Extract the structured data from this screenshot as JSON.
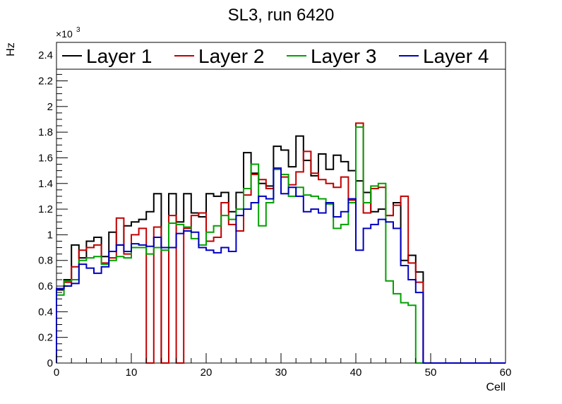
{
  "chart_data": {
    "type": "step",
    "title": "SL3, run 6420",
    "xlabel": "Cell",
    "ylabel": "Hz",
    "y_multiplier": "×10",
    "y_multiplier_exp": "3",
    "xlim": [
      0,
      60
    ],
    "ylim": [
      0,
      2.5
    ],
    "x_ticks": [
      "0",
      "10",
      "20",
      "30",
      "40",
      "50",
      "60"
    ],
    "y_ticks": [
      "0",
      "0.2",
      "0.4",
      "0.6",
      "0.8",
      "1",
      "1.2",
      "1.4",
      "1.6",
      "1.8",
      "2",
      "2.2",
      "2.4"
    ],
    "legend_position": "top",
    "bin_edges": [
      0,
      60
    ],
    "series": [
      {
        "name": "Layer 1",
        "color": "#000000",
        "values": [
          0.57,
          0.65,
          0.92,
          0.82,
          0.95,
          0.98,
          0.83,
          1.02,
          0.92,
          1.07,
          1.1,
          1.12,
          1.18,
          1.32,
          0.0,
          1.32,
          1.1,
          1.32,
          1.17,
          1.14,
          1.32,
          1.3,
          1.33,
          1.18,
          1.33,
          1.64,
          1.48,
          1.4,
          1.38,
          1.69,
          1.66,
          1.53,
          1.77,
          1.58,
          1.46,
          1.63,
          1.51,
          1.62,
          1.57,
          1.5,
          1.42,
          1.33,
          1.18,
          1.2,
          1.15,
          1.25,
          0.8,
          0.84,
          0.71,
          0.0,
          0.0,
          0.0,
          0.0,
          0.0,
          0.0,
          0.0,
          0.0,
          0.0,
          0.0,
          0.0
        ]
      },
      {
        "name": "Layer 2",
        "color": "#c00000",
        "values": [
          0.58,
          0.63,
          0.75,
          0.88,
          0.9,
          0.92,
          0.78,
          0.82,
          1.13,
          0.85,
          1.0,
          1.05,
          0.0,
          1.06,
          0.0,
          1.15,
          0.0,
          1.05,
          1.15,
          1.17,
          0.95,
          0.98,
          1.25,
          1.08,
          1.03,
          1.31,
          1.47,
          1.43,
          1.36,
          1.51,
          1.45,
          1.39,
          1.49,
          1.65,
          1.48,
          1.43,
          1.4,
          1.37,
          1.45,
          1.27,
          1.87,
          1.17,
          1.36,
          1.37,
          1.15,
          1.23,
          1.3,
          0.78,
          0.63,
          0.0,
          0.0,
          0.0,
          0.0,
          0.0,
          0.0,
          0.0,
          0.0,
          0.0,
          0.0,
          0.0
        ]
      },
      {
        "name": "Layer 3",
        "color": "#00a000",
        "values": [
          0.53,
          0.64,
          0.65,
          0.8,
          0.82,
          0.83,
          0.77,
          0.8,
          0.83,
          0.82,
          0.9,
          0.9,
          0.85,
          0.9,
          0.88,
          1.09,
          1.08,
          1.06,
          0.97,
          0.92,
          1.02,
          1.07,
          1.15,
          1.12,
          1.2,
          1.36,
          1.55,
          1.07,
          1.25,
          1.51,
          1.47,
          1.3,
          1.37,
          1.31,
          1.3,
          1.28,
          1.24,
          1.05,
          1.08,
          1.25,
          1.84,
          1.25,
          1.38,
          1.4,
          0.64,
          0.54,
          0.47,
          0.45,
          0.0,
          0.0,
          0.0,
          0.0,
          0.0,
          0.0,
          0.0,
          0.0,
          0.0,
          0.0,
          0.0,
          0.0
        ]
      },
      {
        "name": "Layer 4",
        "color": "#0000c0",
        "values": [
          0.58,
          0.6,
          0.62,
          0.77,
          0.74,
          0.7,
          0.75,
          0.87,
          0.92,
          0.87,
          0.93,
          0.92,
          0.91,
          0.98,
          0.9,
          0.9,
          1.01,
          1.03,
          1.02,
          0.9,
          0.88,
          0.86,
          0.9,
          0.87,
          1.15,
          1.2,
          1.25,
          1.3,
          1.28,
          1.52,
          1.32,
          1.37,
          1.3,
          1.18,
          1.2,
          1.17,
          1.25,
          1.14,
          1.18,
          1.28,
          0.88,
          1.05,
          1.08,
          1.12,
          1.1,
          1.05,
          0.76,
          0.65,
          0.55,
          0.0,
          0.0,
          0.0,
          0.0,
          0.0,
          0.0,
          0.0,
          0.0,
          0.0,
          0.0,
          0.0
        ]
      }
    ]
  }
}
